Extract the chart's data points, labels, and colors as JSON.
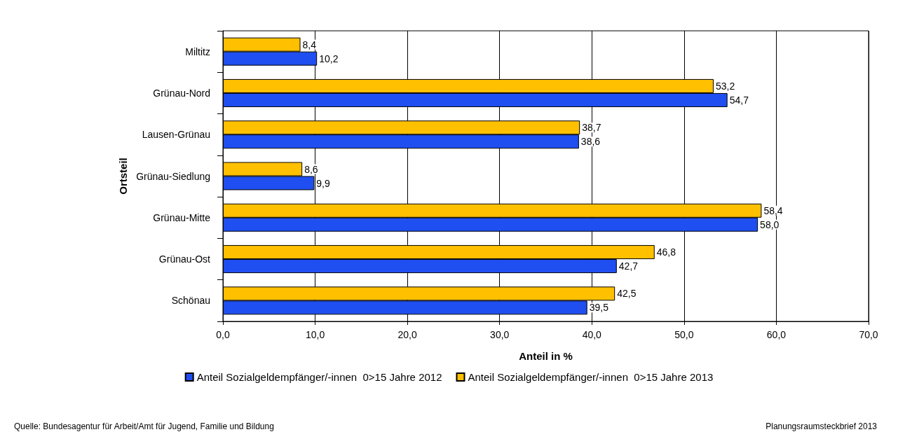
{
  "chart_data": {
    "type": "bar",
    "orientation": "horizontal",
    "xlabel": "Anteil in %",
    "ylabel": "Ortsteil",
    "categories": [
      "Miltitz",
      "Grünau-Nord",
      "Lausen-Grünau",
      "Grünau-Siedlung",
      "Grünau-Mitte",
      "Grünau-Ost",
      "Schönau"
    ],
    "series": [
      {
        "name": "Anteil Sozialgeldempfänger/-innen  0>15 Jahre 2012",
        "color": "#1f4ff0",
        "values": [
          10.2,
          54.7,
          38.6,
          9.9,
          58.0,
          42.7,
          39.5
        ],
        "value_labels": [
          "10,2",
          "54,7",
          "38,6",
          "9,9",
          "58,0",
          "42,7",
          "39,5"
        ]
      },
      {
        "name": "Anteil Sozialgeldempfänger/-innen  0>15 Jahre 2013",
        "color": "#ffc000",
        "values": [
          8.4,
          53.2,
          38.7,
          8.6,
          58.4,
          46.8,
          42.5
        ],
        "value_labels": [
          "8,4",
          "53,2",
          "38,7",
          "8,6",
          "58,4",
          "46,8",
          "42,5"
        ]
      }
    ],
    "xlim": [
      0,
      70
    ],
    "xticks": [
      {
        "value": 0,
        "label": "0,0"
      },
      {
        "value": 10,
        "label": "10,0"
      },
      {
        "value": 20,
        "label": "20,0"
      },
      {
        "value": 30,
        "label": "30,0"
      },
      {
        "value": 40,
        "label": "40,0"
      },
      {
        "value": 50,
        "label": "50,0"
      },
      {
        "value": 60,
        "label": "60,0"
      },
      {
        "value": 70,
        "label": "70,0"
      }
    ],
    "grid": "x",
    "legend": "bottom",
    "annotations": [
      "Quelle: Bundesagentur für Arbeit/Amt für Jugend, Familie und Bildung",
      "Planungsraumsteckbrief 2013"
    ]
  }
}
